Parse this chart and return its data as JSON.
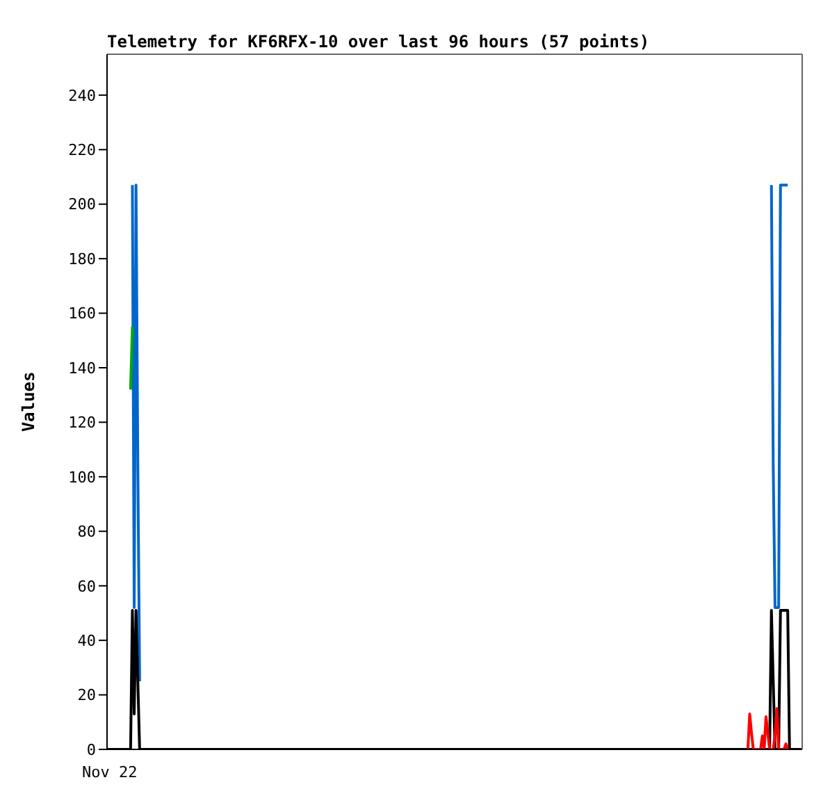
{
  "chart_data": {
    "type": "line",
    "title": "Telemetry for KF6RFX-10 over last 96 hours (57 points)",
    "ylabel": "Values",
    "ylim": [
      0,
      255
    ],
    "yticks": [
      0,
      20,
      40,
      60,
      80,
      100,
      120,
      140,
      160,
      180,
      200,
      220,
      240
    ],
    "grid": false,
    "legend": false,
    "marker": "none",
    "line_style": "solid",
    "annotations": [
      "Nov 22"
    ],
    "categories": [
      null,
      null,
      null,
      null,
      null,
      null,
      null,
      null,
      null,
      null,
      null,
      null,
      null,
      null,
      null,
      null,
      null,
      null,
      null,
      null,
      null,
      null,
      null,
      null,
      null,
      null,
      null,
      null,
      null,
      null,
      null,
      null,
      null,
      null,
      null,
      null,
      null,
      null,
      null,
      null,
      null,
      null,
      null,
      null,
      null,
      null,
      null,
      null,
      null,
      null,
      null,
      null,
      null,
      null,
      null,
      null,
      null,
      null,
      null,
      null,
      null,
      null,
      null,
      null,
      null,
      null,
      null,
      null,
      null,
      null,
      null,
      null,
      null,
      null,
      null,
      null,
      null,
      null,
      null,
      null,
      null,
      null,
      null,
      null,
      null,
      null,
      null,
      null,
      null,
      null,
      null,
      null,
      null,
      null,
      null,
      null,
      null,
      null,
      null,
      null,
      null,
      null,
      null,
      null,
      null,
      null,
      null,
      null,
      null,
      null,
      null,
      null,
      null,
      null,
      null,
      null,
      null,
      null,
      null,
      null,
      null,
      null,
      null,
      null,
      null,
      null,
      null,
      null,
      null,
      null,
      null,
      null,
      null,
      null,
      null,
      null,
      null,
      null,
      null,
      null,
      null,
      null,
      null,
      null,
      null,
      null,
      null,
      null,
      null,
      null,
      null,
      null,
      null,
      null,
      null,
      null,
      null,
      null,
      null,
      null,
      null,
      null,
      null,
      null,
      null,
      null,
      null,
      null,
      null,
      null,
      null,
      null,
      null,
      null,
      null,
      null,
      null,
      null,
      null,
      null,
      null,
      null,
      null,
      null,
      null,
      null,
      null,
      null,
      null,
      null,
      null,
      null,
      null,
      null,
      null,
      null,
      null,
      null,
      null,
      null,
      null,
      null,
      null,
      null,
      null,
      null,
      null,
      null,
      null,
      null,
      null,
      null,
      null,
      null,
      null,
      null,
      null,
      null,
      null,
      null,
      null,
      null,
      null,
      null,
      null,
      null,
      null,
      null,
      null,
      null,
      null,
      null,
      null,
      null,
      null,
      null,
      null,
      null,
      null,
      null,
      null,
      null,
      null,
      null,
      null,
      null,
      null,
      null,
      null,
      null,
      null,
      null,
      null,
      null,
      null,
      null,
      null,
      null,
      null,
      null,
      null,
      null,
      null,
      null,
      null,
      null,
      null,
      null,
      null,
      null,
      null,
      null,
      null,
      null,
      null,
      null,
      null,
      null,
      null,
      null,
      null,
      null,
      null,
      null,
      null,
      null,
      null,
      null,
      null,
      null,
      null,
      null,
      null,
      null,
      null,
      null,
      null,
      null,
      null,
      null,
      null,
      null,
      null,
      null,
      null,
      null,
      null,
      null,
      null,
      null,
      null,
      null,
      null,
      null,
      null,
      null,
      null,
      null,
      null,
      null,
      null,
      null,
      null,
      null,
      null,
      null,
      null,
      null,
      null,
      null,
      null,
      null,
      null,
      null,
      null,
      null,
      null,
      null,
      null,
      null,
      null,
      null,
      null,
      null,
      null,
      null,
      null,
      null,
      null,
      null,
      null,
      null,
      null,
      null,
      null,
      null,
      null,
      null,
      null,
      null,
      null,
      null,
      null,
      null,
      null,
      null,
      null,
      null,
      null,
      null,
      null,
      null,
      null,
      null,
      null,
      null,
      null,
      null,
      null,
      null,
      null,
      null,
      null,
      null,
      null
    ],
    "series": [
      {
        "color": "#0066cc",
        "values": [
          null,
          null,
          null,
          null,
          null,
          null,
          null,
          null,
          null,
          null,
          null,
          null,
          null,
          null,
          207,
          52,
          207,
          104,
          25,
          null,
          null,
          null,
          null,
          null,
          null,
          null,
          null,
          null,
          null,
          null,
          null,
          null,
          null,
          null,
          null,
          null,
          null,
          null,
          null,
          null,
          null,
          null,
          null,
          null,
          null,
          null,
          null,
          null,
          null,
          null,
          null,
          null,
          null,
          null,
          null,
          null,
          null,
          null,
          null,
          null,
          null,
          null,
          null,
          null,
          null,
          null,
          null,
          null,
          null,
          null,
          null,
          null,
          null,
          null,
          null,
          null,
          null,
          null,
          null,
          null,
          null,
          null,
          null,
          null,
          null,
          null,
          null,
          null,
          null,
          null,
          null,
          null,
          null,
          null,
          null,
          null,
          null,
          null,
          null,
          null,
          null,
          null,
          null,
          null,
          null,
          null,
          null,
          null,
          null,
          null,
          null,
          null,
          null,
          null,
          null,
          null,
          null,
          null,
          null,
          null,
          null,
          null,
          null,
          null,
          null,
          null,
          null,
          null,
          null,
          null,
          null,
          null,
          null,
          null,
          null,
          null,
          null,
          null,
          null,
          null,
          null,
          null,
          null,
          null,
          null,
          null,
          null,
          null,
          null,
          null,
          null,
          null,
          null,
          null,
          null,
          null,
          null,
          null,
          null,
          null,
          null,
          null,
          null,
          null,
          null,
          null,
          null,
          null,
          null,
          null,
          null,
          null,
          null,
          null,
          null,
          null,
          null,
          null,
          null,
          null,
          null,
          null,
          null,
          null,
          null,
          null,
          null,
          null,
          null,
          null,
          null,
          null,
          null,
          null,
          null,
          null,
          null,
          null,
          null,
          null,
          null,
          null,
          null,
          null,
          null,
          null,
          null,
          null,
          null,
          null,
          null,
          null,
          null,
          null,
          null,
          null,
          null,
          null,
          null,
          null,
          null,
          null,
          null,
          null,
          null,
          null,
          null,
          null,
          null,
          null,
          null,
          null,
          null,
          null,
          null,
          null,
          null,
          null,
          null,
          null,
          null,
          null,
          null,
          null,
          null,
          null,
          null,
          null,
          null,
          null,
          null,
          null,
          null,
          null,
          null,
          null,
          null,
          null,
          null,
          null,
          null,
          null,
          null,
          null,
          null,
          null,
          null,
          null,
          null,
          null,
          null,
          null,
          null,
          null,
          null,
          null,
          null,
          null,
          null,
          null,
          null,
          null,
          null,
          null,
          null,
          null,
          null,
          null,
          null,
          null,
          null,
          null,
          null,
          null,
          null,
          null,
          null,
          null,
          null,
          null,
          null,
          null,
          null,
          null,
          null,
          null,
          null,
          null,
          null,
          null,
          null,
          null,
          null,
          null,
          null,
          null,
          null,
          null,
          null,
          null,
          null,
          null,
          null,
          null,
          null,
          null,
          null,
          null,
          null,
          null,
          null,
          null,
          null,
          null,
          null,
          null,
          null,
          null,
          null,
          null,
          null,
          null,
          null,
          null,
          null,
          null,
          null,
          null,
          null,
          null,
          null,
          null,
          null,
          null,
          null,
          null,
          null,
          null,
          null,
          null,
          null,
          null,
          null,
          null,
          null,
          null,
          null,
          207,
          104,
          52,
          52,
          52,
          207,
          207,
          207,
          207,
          207,
          null,
          null,
          null,
          null,
          null,
          null,
          null,
          null
        ]
      },
      {
        "color": "#00aa00",
        "values": [
          null,
          null,
          null,
          null,
          null,
          null,
          null,
          null,
          null,
          null,
          null,
          null,
          null,
          132,
          155,
          null,
          null,
          null,
          null,
          null,
          null,
          null,
          null,
          null,
          null,
          null,
          null,
          null,
          null,
          null,
          null,
          null,
          null,
          null,
          null,
          null,
          null,
          null,
          null,
          null,
          null,
          null,
          null,
          null,
          null,
          null,
          null,
          null,
          null,
          null,
          null,
          null,
          null,
          null,
          null,
          null,
          null,
          null,
          null,
          null,
          null,
          null,
          null,
          null,
          null,
          null,
          null,
          null,
          null,
          null,
          null,
          null,
          null,
          null,
          null,
          null,
          null,
          null,
          null,
          null,
          null,
          null,
          null,
          null,
          null,
          null,
          null,
          null,
          null,
          null,
          null,
          null,
          null,
          null,
          null,
          null,
          null,
          null,
          null,
          null,
          null,
          null,
          null,
          null,
          null,
          null,
          null,
          null,
          null,
          null,
          null,
          null,
          null,
          null,
          null,
          null,
          null,
          null,
          null,
          null,
          null,
          null,
          null,
          null,
          null,
          null,
          null,
          null,
          null,
          null,
          null,
          null,
          null,
          null,
          null,
          null,
          null,
          null,
          null,
          null,
          null,
          null,
          null,
          null,
          null,
          null,
          null,
          null,
          null,
          null,
          null,
          null,
          null,
          null,
          null,
          null,
          null,
          null,
          null,
          null,
          null,
          null,
          null,
          null,
          null,
          null,
          null,
          null,
          null,
          null,
          null,
          null,
          null,
          null,
          null,
          null,
          null,
          null,
          null,
          null,
          null,
          null,
          null,
          null,
          null,
          null,
          null,
          null,
          null,
          null,
          null,
          null,
          null,
          null,
          null,
          null,
          null,
          null,
          null,
          null,
          null,
          null,
          null,
          null,
          null,
          null,
          null,
          null,
          null,
          null,
          null,
          null,
          null,
          null,
          null,
          null,
          null,
          null,
          null,
          null,
          null,
          null,
          null,
          null,
          null,
          null,
          null,
          null,
          null,
          null,
          null,
          null,
          null,
          null,
          null,
          null,
          null,
          null,
          null,
          null,
          null,
          null,
          null,
          null,
          null,
          null,
          null,
          null,
          null,
          null,
          null,
          null,
          null,
          null,
          null,
          null,
          null,
          null,
          null,
          null,
          null,
          null,
          null,
          null,
          null,
          null,
          null,
          null,
          null,
          null,
          null,
          null,
          null,
          null,
          null,
          null,
          null,
          null,
          null,
          null,
          null,
          null,
          null,
          null,
          null,
          null,
          null,
          null,
          null,
          null,
          null,
          null,
          null,
          null,
          null,
          null,
          null,
          null,
          null,
          null,
          null,
          null,
          null,
          null,
          null,
          null,
          null,
          null,
          null,
          null,
          null,
          null,
          null,
          null,
          null,
          null,
          null,
          null,
          null,
          null,
          null,
          null,
          null,
          null,
          null,
          null,
          null,
          null,
          null,
          null,
          null,
          null,
          null,
          null,
          null,
          null,
          null,
          null,
          null,
          null,
          null,
          null,
          null,
          null,
          null,
          null,
          null,
          null,
          null,
          null,
          null,
          null,
          null,
          null,
          null,
          null,
          null,
          null,
          null,
          null,
          null,
          null,
          null,
          null,
          null,
          null,
          null,
          null,
          null,
          null,
          null,
          null,
          null,
          null,
          null,
          null,
          null,
          null,
          null,
          null,
          null,
          null,
          null,
          null,
          null
        ]
      },
      {
        "color": "#000000",
        "values": [
          0,
          0,
          0,
          0,
          0,
          0,
          0,
          0,
          0,
          0,
          0,
          0,
          0,
          0,
          51,
          13,
          51,
          25,
          0,
          0,
          0,
          0,
          0,
          0,
          0,
          0,
          0,
          0,
          0,
          0,
          0,
          0,
          0,
          0,
          0,
          0,
          0,
          0,
          0,
          0,
          0,
          0,
          0,
          0,
          0,
          0,
          0,
          0,
          0,
          0,
          0,
          0,
          0,
          0,
          0,
          0,
          0,
          0,
          0,
          0,
          0,
          0,
          0,
          0,
          0,
          0,
          0,
          0,
          0,
          0,
          0,
          0,
          0,
          0,
          0,
          0,
          0,
          0,
          0,
          0,
          0,
          0,
          0,
          0,
          0,
          0,
          0,
          0,
          0,
          0,
          0,
          0,
          0,
          0,
          0,
          0,
          0,
          0,
          0,
          0,
          0,
          0,
          0,
          0,
          0,
          0,
          0,
          0,
          0,
          0,
          0,
          0,
          0,
          0,
          0,
          0,
          0,
          0,
          0,
          0,
          0,
          0,
          0,
          0,
          0,
          0,
          0,
          0,
          0,
          0,
          0,
          0,
          0,
          0,
          0,
          0,
          0,
          0,
          0,
          0,
          0,
          0,
          0,
          0,
          0,
          0,
          0,
          0,
          0,
          0,
          0,
          0,
          0,
          0,
          0,
          0,
          0,
          0,
          0,
          0,
          0,
          0,
          0,
          0,
          0,
          0,
          0,
          0,
          0,
          0,
          0,
          0,
          0,
          0,
          0,
          0,
          0,
          0,
          0,
          0,
          0,
          0,
          0,
          0,
          0,
          0,
          0,
          0,
          0,
          0,
          0,
          0,
          0,
          0,
          0,
          0,
          0,
          0,
          0,
          0,
          0,
          0,
          0,
          0,
          0,
          0,
          0,
          0,
          0,
          0,
          0,
          0,
          0,
          0,
          0,
          0,
          0,
          0,
          0,
          0,
          0,
          0,
          0,
          0,
          0,
          0,
          0,
          0,
          0,
          0,
          0,
          0,
          0,
          0,
          0,
          0,
          0,
          0,
          0,
          0,
          0,
          0,
          0,
          0,
          0,
          0,
          0,
          0,
          0,
          0,
          0,
          0,
          0,
          0,
          0,
          0,
          0,
          0,
          0,
          0,
          0,
          0,
          0,
          0,
          0,
          0,
          0,
          0,
          0,
          0,
          0,
          0,
          0,
          0,
          0,
          0,
          0,
          0,
          0,
          0,
          0,
          0,
          0,
          0,
          0,
          0,
          0,
          0,
          0,
          0,
          0,
          0,
          0,
          0,
          0,
          0,
          0,
          0,
          0,
          0,
          0,
          0,
          0,
          0,
          0,
          0,
          0,
          0,
          0,
          0,
          0,
          0,
          0,
          0,
          0,
          0,
          0,
          0,
          0,
          0,
          0,
          0,
          0,
          0,
          0,
          0,
          0,
          0,
          0,
          0,
          0,
          0,
          0,
          0,
          0,
          0,
          0,
          0,
          0,
          0,
          0,
          0,
          0,
          0,
          0,
          0,
          0,
          0,
          0,
          0,
          0,
          0,
          0,
          0,
          0,
          0,
          0,
          0,
          0,
          0,
          0,
          0,
          0,
          0,
          0,
          0,
          0,
          51,
          25,
          0,
          0,
          0,
          51,
          51,
          51,
          51,
          51,
          0,
          0,
          0,
          0,
          0,
          0,
          0,
          0
        ]
      },
      {
        "color": "#ff0000",
        "values": [
          null,
          null,
          null,
          null,
          null,
          null,
          null,
          null,
          null,
          null,
          null,
          null,
          null,
          null,
          null,
          null,
          null,
          null,
          null,
          null,
          null,
          null,
          null,
          null,
          null,
          null,
          null,
          null,
          null,
          null,
          null,
          null,
          null,
          null,
          null,
          null,
          null,
          null,
          null,
          null,
          null,
          null,
          null,
          null,
          null,
          null,
          null,
          null,
          null,
          null,
          null,
          null,
          null,
          null,
          null,
          null,
          null,
          null,
          null,
          null,
          null,
          null,
          null,
          null,
          null,
          null,
          null,
          null,
          null,
          null,
          null,
          null,
          null,
          null,
          null,
          null,
          null,
          null,
          null,
          null,
          null,
          null,
          null,
          null,
          null,
          null,
          null,
          null,
          null,
          null,
          null,
          null,
          null,
          null,
          null,
          null,
          null,
          null,
          null,
          null,
          null,
          null,
          null,
          null,
          null,
          null,
          null,
          null,
          null,
          null,
          null,
          null,
          null,
          null,
          null,
          null,
          null,
          null,
          null,
          null,
          null,
          null,
          null,
          null,
          null,
          null,
          null,
          null,
          null,
          null,
          null,
          null,
          null,
          null,
          null,
          null,
          null,
          null,
          null,
          null,
          null,
          null,
          null,
          null,
          null,
          null,
          null,
          null,
          null,
          null,
          null,
          null,
          null,
          null,
          null,
          null,
          null,
          null,
          null,
          null,
          null,
          null,
          null,
          null,
          null,
          null,
          null,
          null,
          null,
          null,
          null,
          null,
          null,
          null,
          null,
          null,
          null,
          null,
          null,
          null,
          null,
          null,
          null,
          null,
          null,
          null,
          null,
          null,
          null,
          null,
          null,
          null,
          null,
          null,
          null,
          null,
          null,
          null,
          null,
          null,
          null,
          null,
          null,
          null,
          null,
          null,
          null,
          null,
          null,
          null,
          null,
          null,
          null,
          null,
          null,
          null,
          null,
          null,
          null,
          null,
          null,
          null,
          null,
          null,
          null,
          null,
          null,
          null,
          null,
          null,
          null,
          null,
          null,
          null,
          null,
          null,
          null,
          null,
          null,
          null,
          null,
          null,
          null,
          null,
          null,
          null,
          null,
          null,
          null,
          null,
          null,
          null,
          null,
          null,
          null,
          null,
          null,
          null,
          null,
          null,
          null,
          null,
          null,
          null,
          null,
          null,
          null,
          null,
          null,
          null,
          null,
          null,
          null,
          null,
          null,
          null,
          null,
          null,
          null,
          null,
          null,
          null,
          null,
          null,
          null,
          null,
          null,
          null,
          null,
          null,
          null,
          null,
          null,
          null,
          null,
          null,
          null,
          null,
          null,
          null,
          null,
          null,
          null,
          null,
          null,
          null,
          null,
          null,
          null,
          null,
          null,
          null,
          null,
          null,
          null,
          null,
          null,
          null,
          null,
          null,
          null,
          null,
          null,
          null,
          null,
          null,
          null,
          null,
          null,
          null,
          null,
          null,
          null,
          null,
          null,
          null,
          null,
          null,
          null,
          null,
          null,
          null,
          null,
          null,
          null,
          null,
          null,
          null,
          null,
          null,
          null,
          null,
          null,
          null,
          0,
          13,
          6,
          0,
          0,
          0,
          0,
          0,
          5,
          0,
          12,
          6,
          0,
          0,
          0,
          5,
          15,
          0,
          0,
          0,
          0,
          2,
          0,
          null,
          null,
          null,
          null,
          null,
          null,
          null,
          null
        ]
      }
    ]
  }
}
